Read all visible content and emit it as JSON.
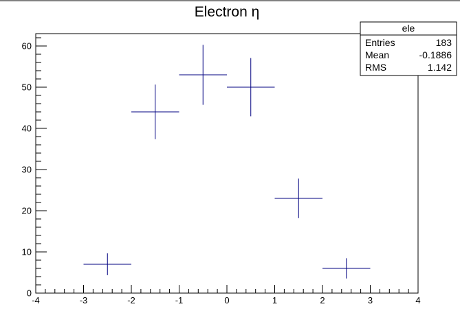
{
  "chart_data": {
    "type": "scatter",
    "title": "Electron η",
    "xlabel": "",
    "ylabel": "",
    "xlim": [
      -4,
      4
    ],
    "ylim": [
      0,
      63
    ],
    "x_ticks": [
      -4,
      -3,
      -2,
      -1,
      0,
      1,
      2,
      3,
      4
    ],
    "x_tick_labels": [
      "-4",
      "-3",
      "-2",
      "-1",
      "0",
      "1",
      "2",
      "3",
      "4"
    ],
    "y_ticks": [
      0,
      10,
      20,
      30,
      40,
      50,
      60
    ],
    "y_tick_labels": [
      "0",
      "10",
      "20",
      "30",
      "40",
      "50",
      "60"
    ],
    "grid": false,
    "legend": "none",
    "color": "#000080",
    "bin_half_width": 0.5,
    "x": [
      -2.5,
      -1.5,
      -0.5,
      0.5,
      1.5,
      2.5
    ],
    "y": [
      7,
      44,
      53,
      50,
      23,
      6
    ],
    "y_err": [
      2.65,
      6.63,
      7.28,
      7.07,
      4.8,
      2.45
    ]
  },
  "stats_box": {
    "title": "ele",
    "rows": [
      {
        "label": "Entries",
        "value": "183"
      },
      {
        "label": "Mean",
        "value": "-0.1886"
      },
      {
        "label": "RMS",
        "value": "1.142"
      }
    ]
  }
}
